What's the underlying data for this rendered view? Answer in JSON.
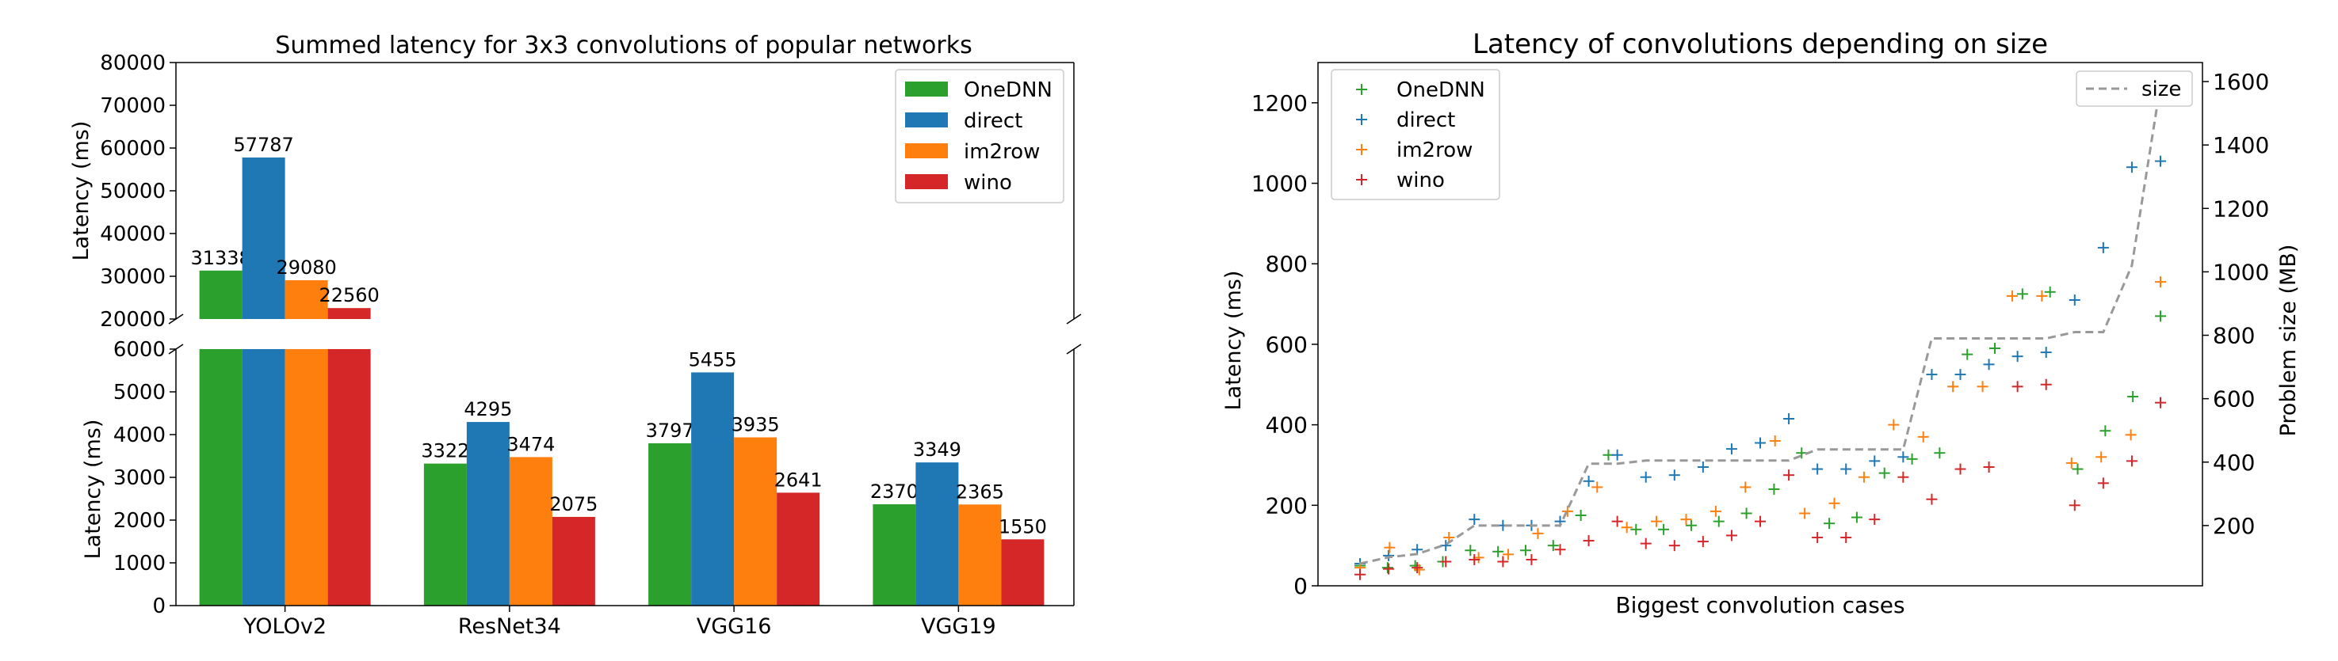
{
  "chart_data": [
    {
      "type": "bar",
      "title": "Summed latency for 3x3 convolutions of popular networks",
      "xlabel": "",
      "ylabel": "Latency (ms)",
      "broken_axis": true,
      "ylim_upper": [
        20000,
        80000
      ],
      "ylim_lower": [
        0,
        6000
      ],
      "yticks_upper": [
        "20000",
        "30000",
        "40000",
        "50000",
        "60000",
        "70000",
        "80000"
      ],
      "yticks_lower": [
        "0",
        "1000",
        "2000",
        "3000",
        "4000",
        "5000",
        "6000"
      ],
      "categories": [
        "YOLOv2",
        "ResNet34",
        "VGG16",
        "VGG19"
      ],
      "series": [
        {
          "name": "OneDNN",
          "color": "#2ca02c",
          "values": [
            31338,
            3322,
            3797,
            2370
          ]
        },
        {
          "name": "direct",
          "color": "#1f77b4",
          "values": [
            57787,
            4295,
            5455,
            3349
          ]
        },
        {
          "name": "im2row",
          "color": "#ff7f0e",
          "values": [
            29080,
            3474,
            3935,
            2365
          ]
        },
        {
          "name": "wino",
          "color": "#d62728",
          "values": [
            22560,
            2075,
            2641,
            1550
          ]
        }
      ],
      "legend_position": "top-right",
      "grid": false
    },
    {
      "type": "scatter",
      "title": "Latency of convolutions depending on size",
      "xlabel": "Biggest convolution cases",
      "ylabel": "Latency (ms)",
      "y2label": "Problem size (MB)",
      "ylim": [
        0,
        1300
      ],
      "y2lim": [
        10,
        1660
      ],
      "yticks": [
        "0",
        "200",
        "400",
        "600",
        "800",
        "1000",
        "1200"
      ],
      "y2ticks": [
        "200",
        "400",
        "600",
        "800",
        "1000",
        "1200",
        "1400",
        "1600"
      ],
      "legend_position": "top-left",
      "legend2_position": "top-right",
      "grid": false,
      "series": [
        {
          "name": "OneDNN",
          "color": "#2ca02c",
          "marker": "+",
          "values": [
            50,
            45,
            50,
            60,
            88,
            85,
            88,
            100,
            175,
            325,
            140,
            140,
            150,
            160,
            180,
            240,
            330,
            155,
            170,
            280,
            315,
            330,
            575,
            590,
            725,
            730,
            290,
            385,
            470,
            670
          ]
        },
        {
          "name": "direct",
          "color": "#1f77b4",
          "marker": "+",
          "values": [
            55,
            75,
            90,
            100,
            165,
            150,
            150,
            160,
            260,
            325,
            270,
            275,
            295,
            340,
            355,
            415,
            290,
            290,
            310,
            320,
            525,
            525,
            550,
            570,
            580,
            710,
            840,
            1040,
            1055
          ]
        },
        {
          "name": "im2row",
          "color": "#ff7f0e",
          "marker": "+",
          "values": [
            45,
            95,
            40,
            120,
            70,
            78,
            130,
            185,
            245,
            145,
            160,
            165,
            185,
            245,
            360,
            180,
            205,
            270,
            400,
            370,
            495,
            495,
            720,
            720,
            305,
            320,
            375,
            755
          ]
        },
        {
          "name": "wino",
          "color": "#d62728",
          "marker": "+",
          "values": [
            28,
            42,
            45,
            60,
            65,
            60,
            65,
            90,
            112,
            160,
            105,
            100,
            110,
            125,
            160,
            275,
            120,
            120,
            165,
            270,
            215,
            290,
            295,
            495,
            500,
            200,
            255,
            310,
            455
          ]
        },
        {
          "name": "size",
          "color": "#999999",
          "line_style": "dashed",
          "axis": "right",
          "values": [
            80,
            100,
            110,
            140,
            200,
            200,
            200,
            200,
            395,
            395,
            405,
            405,
            405,
            405,
            405,
            405,
            440,
            440,
            440,
            440,
            790,
            790,
            790,
            790,
            790,
            810,
            810,
            1020,
            1590
          ]
        }
      ]
    }
  ]
}
